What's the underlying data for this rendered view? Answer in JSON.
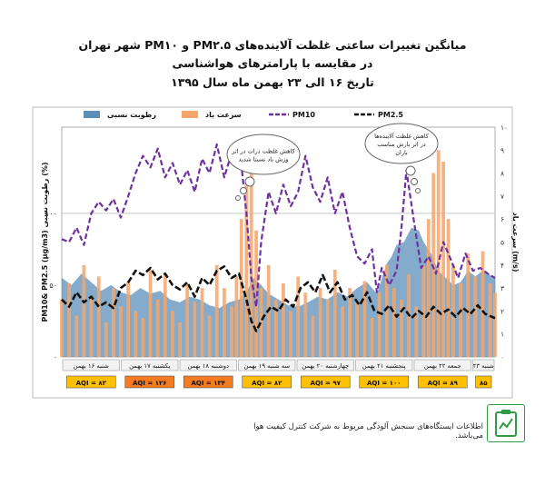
{
  "title_lines": [
    "میانگین تغییرات ساعتی غلظت آلاینده‌های PM۲.۵ و PM۱۰ شهر تهران",
    "در مقایسه با پارامترهای هواشناسی",
    "تاریخ ۱۶ الی ۲۳ بهمن ماه سال ۱۳۹۵"
  ],
  "footnote": "اطلاعات ایستگاه‌های سنجش آلودگی مربوط به شرکت کنترل کیفیت هوا می‌باشد.",
  "colors": {
    "humidity": "#5b8fb9",
    "wind": "#f4a66b",
    "pm10": "#7030a0",
    "pm25": "#111111",
    "aqi_yellow": "#ffc000",
    "aqi_orange": "#f47b20",
    "grid": "#c8c8c8"
  },
  "chart_data": {
    "type": "line",
    "left_axis_label": "PM10& PM2.5 (μg/m3) رطوبت نسبی (%)",
    "right_axis_label": "سرعت باد (m/s)",
    "left_ticks": [
      "۰",
      "۵۰",
      "۱۰۰"
    ],
    "right_ticks": [
      "۰",
      "۱",
      "۲",
      "۳",
      "۴",
      "۵",
      "۶",
      "۷",
      "۸",
      "۹",
      "۱۰"
    ],
    "ylim_left": [
      0,
      160
    ],
    "ylim_right": [
      0,
      10
    ],
    "legend": [
      "رطوبت نسبی",
      "سرعت باد",
      "PM10",
      "PM2.5"
    ],
    "day_labels": [
      "شنبه ۱۶ بهمن",
      "یکشنبه ۱۷ بهمن",
      "دوشنبه ۱۸ بهمن",
      "سه شنبه ۱۹ بهمن",
      "چهارشنبه ۲۰ بهمن",
      "پنجشنبه ۲۱ بهمن",
      "جمعه ۲۲ بهمن",
      "شنبه ۲۳"
    ],
    "aqi_labels": [
      "AQI = ۸۳",
      "AQI = ۱۲۶",
      "AQI = ۱۳۴",
      "AQI = ۸۲",
      "AQI = ۹۷",
      "AQI = ۱۰۰",
      "AQI = ۸۹",
      "۸۵"
    ],
    "aqi_levels": [
      "yellow",
      "orange",
      "orange",
      "yellow",
      "yellow",
      "yellow",
      "yellow",
      "yellow"
    ],
    "annotations": [
      "کاهش غلظت ذرات در اثر وزش باد نسبتا شدید",
      "کاهش غلظت آلاینده‌ها در اثر بارش مناسب باران"
    ],
    "x_hours": 176,
    "series": [
      {
        "name": "PM10",
        "axis": "left",
        "points": [
          [
            0,
            82
          ],
          [
            3,
            80
          ],
          [
            6,
            90
          ],
          [
            9,
            78
          ],
          [
            12,
            100
          ],
          [
            15,
            108
          ],
          [
            18,
            102
          ],
          [
            21,
            110
          ],
          [
            24,
            97
          ],
          [
            27,
            112
          ],
          [
            30,
            128
          ],
          [
            33,
            140
          ],
          [
            36,
            132
          ],
          [
            39,
            145
          ],
          [
            42,
            125
          ],
          [
            45,
            135
          ],
          [
            48,
            120
          ],
          [
            51,
            130
          ],
          [
            54,
            115
          ],
          [
            57,
            138
          ],
          [
            60,
            128
          ],
          [
            63,
            148
          ],
          [
            66,
            125
          ],
          [
            69,
            142
          ],
          [
            72,
            150
          ],
          [
            75,
            100
          ],
          [
            77,
            55
          ],
          [
            79,
            35
          ],
          [
            81,
            80
          ],
          [
            84,
            115
          ],
          [
            87,
            100
          ],
          [
            90,
            120
          ],
          [
            93,
            105
          ],
          [
            96,
            115
          ],
          [
            99,
            140
          ],
          [
            102,
            118
          ],
          [
            105,
            108
          ],
          [
            108,
            125
          ],
          [
            111,
            100
          ],
          [
            114,
            115
          ],
          [
            117,
            90
          ],
          [
            120,
            70
          ],
          [
            123,
            65
          ],
          [
            126,
            75
          ],
          [
            128,
            45
          ],
          [
            130,
            62
          ],
          [
            133,
            50
          ],
          [
            136,
            60
          ],
          [
            138,
            90
          ],
          [
            140,
            130
          ],
          [
            143,
            95
          ],
          [
            146,
            62
          ],
          [
            149,
            70
          ],
          [
            152,
            58
          ],
          [
            155,
            80
          ],
          [
            158,
            68
          ],
          [
            161,
            55
          ],
          [
            164,
            72
          ],
          [
            167,
            60
          ],
          [
            170,
            62
          ],
          [
            173,
            58
          ],
          [
            176,
            55
          ]
        ]
      },
      {
        "name": "PM2.5",
        "axis": "left",
        "points": [
          [
            0,
            40
          ],
          [
            3,
            35
          ],
          [
            6,
            45
          ],
          [
            9,
            38
          ],
          [
            12,
            42
          ],
          [
            15,
            35
          ],
          [
            18,
            38
          ],
          [
            21,
            34
          ],
          [
            24,
            48
          ],
          [
            27,
            52
          ],
          [
            30,
            60
          ],
          [
            33,
            57
          ],
          [
            36,
            62
          ],
          [
            39,
            54
          ],
          [
            42,
            58
          ],
          [
            45,
            50
          ],
          [
            48,
            47
          ],
          [
            51,
            52
          ],
          [
            54,
            42
          ],
          [
            57,
            55
          ],
          [
            60,
            50
          ],
          [
            63,
            60
          ],
          [
            66,
            63
          ],
          [
            69,
            55
          ],
          [
            72,
            58
          ],
          [
            75,
            40
          ],
          [
            77,
            25
          ],
          [
            79,
            18
          ],
          [
            82,
            28
          ],
          [
            85,
            35
          ],
          [
            88,
            32
          ],
          [
            91,
            40
          ],
          [
            94,
            35
          ],
          [
            97,
            48
          ],
          [
            100,
            52
          ],
          [
            103,
            45
          ],
          [
            106,
            57
          ],
          [
            109,
            45
          ],
          [
            112,
            52
          ],
          [
            115,
            40
          ],
          [
            118,
            43
          ],
          [
            121,
            36
          ],
          [
            124,
            45
          ],
          [
            127,
            32
          ],
          [
            130,
            30
          ],
          [
            133,
            36
          ],
          [
            136,
            28
          ],
          [
            139,
            34
          ],
          [
            142,
            27
          ],
          [
            145,
            32
          ],
          [
            148,
            28
          ],
          [
            151,
            35
          ],
          [
            154,
            30
          ],
          [
            157,
            33
          ],
          [
            160,
            28
          ],
          [
            163,
            34
          ],
          [
            166,
            30
          ],
          [
            169,
            36
          ],
          [
            172,
            30
          ],
          [
            176,
            27
          ]
        ]
      },
      {
        "name": "رطوبت نسبی",
        "axis": "left",
        "points": [
          [
            0,
            55
          ],
          [
            4,
            50
          ],
          [
            8,
            58
          ],
          [
            12,
            52
          ],
          [
            16,
            46
          ],
          [
            20,
            50
          ],
          [
            24,
            45
          ],
          [
            28,
            43
          ],
          [
            32,
            48
          ],
          [
            36,
            44
          ],
          [
            40,
            46
          ],
          [
            44,
            40
          ],
          [
            48,
            38
          ],
          [
            52,
            42
          ],
          [
            56,
            40
          ],
          [
            60,
            36
          ],
          [
            64,
            34
          ],
          [
            68,
            38
          ],
          [
            72,
            40
          ],
          [
            75,
            45
          ],
          [
            78,
            55
          ],
          [
            81,
            50
          ],
          [
            84,
            44
          ],
          [
            88,
            40
          ],
          [
            92,
            36
          ],
          [
            96,
            35
          ],
          [
            100,
            38
          ],
          [
            104,
            42
          ],
          [
            108,
            40
          ],
          [
            112,
            45
          ],
          [
            116,
            42
          ],
          [
            120,
            48
          ],
          [
            124,
            52
          ],
          [
            128,
            44
          ],
          [
            132,
            65
          ],
          [
            134,
            70
          ],
          [
            136,
            78
          ],
          [
            139,
            80
          ],
          [
            142,
            90
          ],
          [
            145,
            88
          ],
          [
            147,
            80
          ],
          [
            150,
            72
          ],
          [
            153,
            60
          ],
          [
            156,
            55
          ],
          [
            159,
            50
          ],
          [
            162,
            52
          ],
          [
            165,
            60
          ],
          [
            168,
            56
          ],
          [
            171,
            60
          ],
          [
            174,
            57
          ],
          [
            176,
            55
          ]
        ]
      },
      {
        "name": "سرعت باد",
        "axis": "right",
        "points": [
          [
            0,
            2.5
          ],
          [
            3,
            3.2
          ],
          [
            6,
            1.8
          ],
          [
            9,
            4.0
          ],
          [
            12,
            2.6
          ],
          [
            15,
            3.5
          ],
          [
            18,
            1.5
          ],
          [
            21,
            3.0
          ],
          [
            24,
            2.2
          ],
          [
            27,
            3.3
          ],
          [
            30,
            2.0
          ],
          [
            33,
            1.7
          ],
          [
            36,
            3.8
          ],
          [
            39,
            2.5
          ],
          [
            42,
            3.6
          ],
          [
            45,
            2.0
          ],
          [
            48,
            1.5
          ],
          [
            51,
            3.2
          ],
          [
            54,
            2.4
          ],
          [
            57,
            3.0
          ],
          [
            60,
            1.8
          ],
          [
            63,
            4.0
          ],
          [
            66,
            3.0
          ],
          [
            69,
            2.2
          ],
          [
            71,
            3.5
          ],
          [
            73,
            6.0
          ],
          [
            75,
            7.5
          ],
          [
            77,
            8.7
          ],
          [
            79,
            5.5
          ],
          [
            81,
            3.0
          ],
          [
            84,
            4.0
          ],
          [
            87,
            2.5
          ],
          [
            90,
            3.2
          ],
          [
            93,
            2.0
          ],
          [
            96,
            3.5
          ],
          [
            99,
            2.8
          ],
          [
            102,
            1.8
          ],
          [
            105,
            3.0
          ],
          [
            108,
            2.5
          ],
          [
            111,
            3.8
          ],
          [
            114,
            2.2
          ],
          [
            117,
            3.0
          ],
          [
            120,
            2.4
          ],
          [
            123,
            3.3
          ],
          [
            126,
            1.7
          ],
          [
            129,
            2.8
          ],
          [
            132,
            4.0
          ],
          [
            135,
            3.0
          ],
          [
            138,
            2.5
          ],
          [
            141,
            3.6
          ],
          [
            144,
            2.2
          ],
          [
            147,
            4.0
          ],
          [
            149,
            6.0
          ],
          [
            151,
            8.0
          ],
          [
            153,
            9.0
          ],
          [
            155,
            8.5
          ],
          [
            157,
            6.0
          ],
          [
            159,
            4.0
          ],
          [
            162,
            3.2
          ],
          [
            165,
            4.5
          ],
          [
            168,
            3.5
          ],
          [
            171,
            4.6
          ],
          [
            174,
            3.2
          ],
          [
            176,
            2.8
          ]
        ]
      }
    ]
  }
}
